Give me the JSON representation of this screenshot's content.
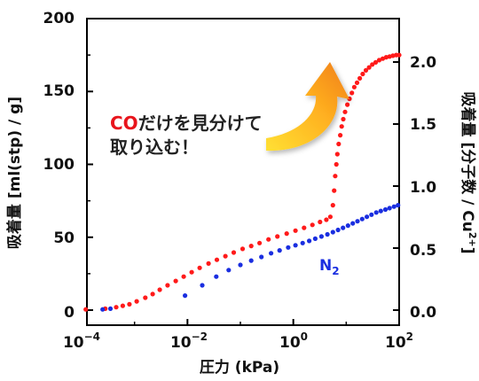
{
  "chart_data": {
    "type": "scatter",
    "xlabel": "圧力 (kPa)",
    "ylabel_left": "吸着量 [ml(stp) / g]",
    "ylabel_right": "吸着量 [分子数 / Cu",
    "ylabel_right_sup": "2+",
    "ylabel_right_end": "]",
    "xscale": "log",
    "xlim": [
      0.0001,
      100
    ],
    "ylim": [
      0,
      200
    ],
    "ylim_right": [
      0,
      2.35
    ],
    "x_ticks": [
      {
        "value": 0.0001,
        "base": "10",
        "exp": "−4"
      },
      {
        "value": 0.01,
        "base": "10",
        "exp": "−2"
      },
      {
        "value": 1,
        "base": "10",
        "exp": "0"
      },
      {
        "value": 100,
        "base": "10",
        "exp": "2"
      }
    ],
    "y_ticks": [
      "0",
      "50",
      "100",
      "150",
      "200"
    ],
    "y_ticks_right": [
      "0.0",
      "0.5",
      "1.0",
      "1.5",
      "2.0"
    ],
    "grid": false,
    "annotation": {
      "line1_co": "CO",
      "line1_rest": "だけを見分けて",
      "line2": "取り込む！"
    },
    "series": [
      {
        "name": "CO",
        "color": "#ff1a1a",
        "x": [
          0.00012,
          0.00028,
          0.00045,
          0.0006,
          0.0008,
          0.0011,
          0.0016,
          0.0022,
          0.003,
          0.0042,
          0.006,
          0.0085,
          0.012,
          0.017,
          0.025,
          0.036,
          0.052,
          0.075,
          0.11,
          0.16,
          0.23,
          0.34,
          0.5,
          0.75,
          1.1,
          1.6,
          2.3,
          3.2,
          4.2,
          5.0,
          5.6,
          5.9,
          6.2,
          6.5,
          6.8,
          7.2,
          7.7,
          8.2,
          8.8,
          9.5,
          10.5,
          11.5,
          12.8,
          14.2,
          16,
          18,
          20.5,
          23.5,
          27,
          31,
          36,
          42,
          49,
          57,
          66,
          76,
          88,
          100
        ],
        "y": [
          0.5,
          1,
          2,
          3,
          4,
          6,
          8.5,
          11,
          14,
          17,
          20,
          23,
          26,
          29,
          32,
          34.5,
          37,
          39.5,
          42,
          44,
          46,
          48.5,
          50.5,
          52.5,
          54.5,
          56.5,
          58.5,
          60.5,
          62,
          64,
          72,
          82,
          92,
          100,
          107,
          114,
          120,
          126,
          131,
          136,
          141,
          145,
          149,
          153,
          156,
          159,
          162,
          164.5,
          166.5,
          168.5,
          170,
          171.5,
          172.5,
          173.5,
          174,
          174.5,
          175,
          175
        ]
      },
      {
        "name": "N",
        "name_sub": "2",
        "color": "#1a2ee0",
        "x": [
          0.00025,
          0.00035,
          0.009,
          0.019,
          0.035,
          0.06,
          0.1,
          0.16,
          0.25,
          0.38,
          0.55,
          0.8,
          1.1,
          1.5,
          2.0,
          2.6,
          3.4,
          4.4,
          5.6,
          7.0,
          8.7,
          10.8,
          13.3,
          16.3,
          20,
          24.5,
          30,
          37,
          45,
          55,
          66,
          80,
          95
        ],
        "y": [
          0.5,
          1,
          10,
          17,
          23,
          27.5,
          31,
          34,
          36.5,
          39,
          41,
          43,
          44.5,
          46,
          47.5,
          49,
          50.5,
          52,
          53.5,
          55,
          56.5,
          58,
          59.5,
          61,
          62.5,
          64,
          65.5,
          67,
          68,
          69,
          70,
          71,
          72
        ]
      }
    ]
  }
}
